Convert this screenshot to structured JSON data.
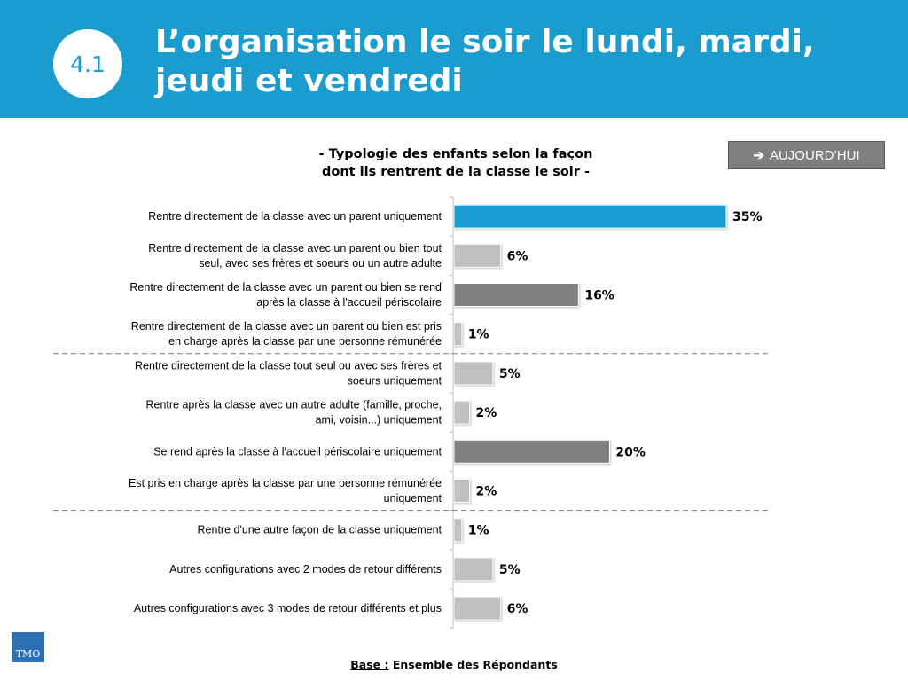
{
  "header": {
    "badge": "4.1",
    "title_line1": "L’organisation le soir le lundi, mardi,",
    "title_line2": "jeudi et vendredi"
  },
  "tag": {
    "label": "AUJOURD’HUI",
    "icon": "arrow-right-icon"
  },
  "footer": {
    "base_label": "Base :",
    "base_text": " Ensemble des Répondants"
  },
  "logo": {
    "text": "TMO"
  },
  "colors": {
    "header": "#1a9ccf",
    "highlight": "#1a9ccf",
    "dark": "#808080",
    "light": "#c0c0c0"
  },
  "chart_data": {
    "type": "bar",
    "orientation": "horizontal",
    "title": "- Typologie des enfants selon la façon\ndont ils rentrent de la classe le soir -",
    "unit": "%",
    "categories": [
      "Rentre directement de la classe avec un parent uniquement",
      "Rentre directement de la classe avec un parent ou bien tout\nseul, avec ses frères et soeurs ou un autre adulte",
      "Rentre directement de la classe avec un parent ou bien se rend\naprès la classe à l'accueil périscolaire",
      "Rentre directement de la classe avec un parent ou bien est pris\nen charge après la classe par une personne rémunérée",
      "Rentre directement de la classe tout seul ou avec ses frères et\nsoeurs uniquement",
      "Rentre après la classe avec un autre adulte (famille, proche,\nami, voisin...) uniquement",
      "Se rend après la classe à l'accueil périscolaire uniquement",
      "Est pris en charge après la classe par une personne rémunérée\nuniquement",
      "Rentre d'une autre façon de la classe uniquement",
      "Autres configurations avec 2 modes de retour différents",
      "Autres configurations avec 3 modes de retour différents et plus"
    ],
    "values": [
      35,
      6,
      16,
      1,
      5,
      2,
      20,
      2,
      1,
      5,
      6
    ],
    "value_labels": [
      "35%",
      "6%",
      "16%",
      "1%",
      "5%",
      "2%",
      "20%",
      "2%",
      "1%",
      "5%",
      "6%"
    ],
    "bar_styles": [
      "highlight",
      "light",
      "dark",
      "light",
      "light",
      "light",
      "dark",
      "light",
      "light",
      "light",
      "light"
    ],
    "group_separators_after": [
      3,
      7
    ],
    "xlim": [
      0,
      35
    ]
  }
}
